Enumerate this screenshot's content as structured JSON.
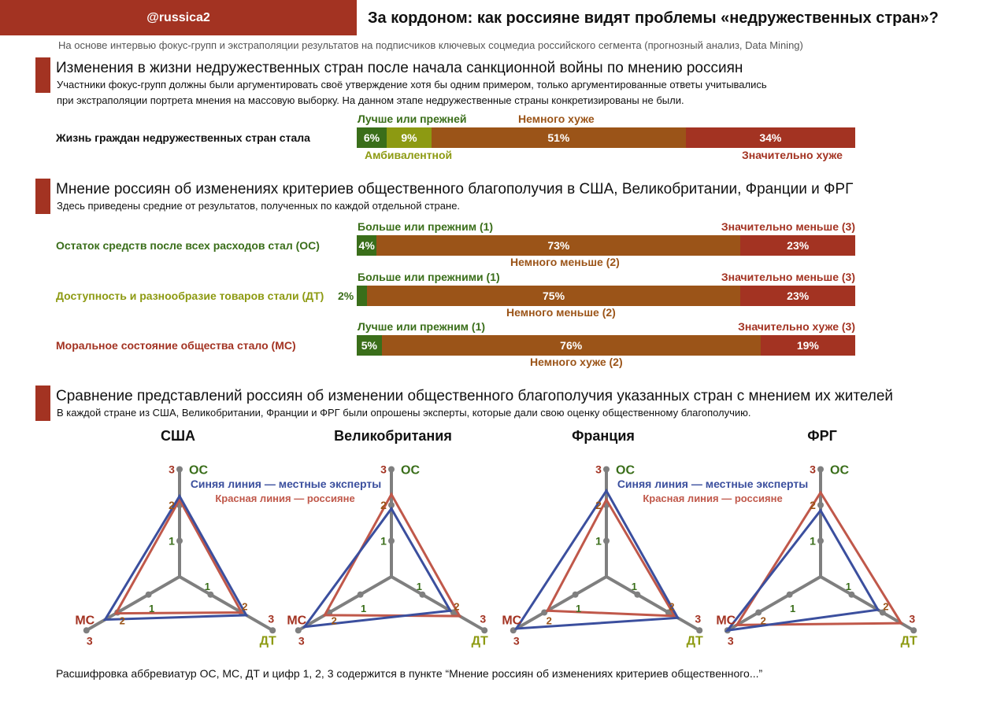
{
  "header": {
    "handle": "@russica2",
    "title": "За кордоном: как россияне видят проблемы «недружественных стран»?",
    "subtitle": "На основе интервью фокус-групп и экстраполяции результатов на подписчиков ключевых соцмедиа российского сегмента (прогнозный анализ, Data Mining)"
  },
  "s1": {
    "title": "Изменения в жизни недружественных стран после начала санкционной войны по мнению россиян",
    "desc1": "Участники фокус-групп должны были аргументировать своё утверждение хотя бы одним примером, только аргументированные ответы учитывались",
    "desc2": "при экстраполяции портрета мнения на массовую выборку. На данном этапе недружественные страны конкретизированы не были.",
    "row": {
      "label": "Жизнь граждан недружественных стран стала",
      "values": [
        6,
        9,
        51,
        34
      ],
      "texts": [
        "6%",
        "9%",
        "51%",
        "34%"
      ],
      "l_better": "Лучше или прежней",
      "l_ambi": "Амбивалентной",
      "l_little": "Немного хуже",
      "l_much": "Значительно хуже"
    }
  },
  "s2": {
    "title": "Мнение россиян об изменениях критериев общественного благополучия в США, Великобритании, Франции и ФРГ",
    "desc": "Здесь приведены средние от результатов, полученных по каждой отдельной стране.",
    "rows": [
      {
        "label": "Остаток средств после всех расходов стал (ОС)",
        "values": [
          4,
          73,
          23
        ],
        "texts": [
          "4%",
          "73%",
          "23%"
        ],
        "l1": "Больше или прежним (1)",
        "l2": "Немного меньше (2)",
        "l3": "Значительно меньше (3)"
      },
      {
        "label": "Доступность и разнообразие товаров стали (ДТ)",
        "values": [
          2,
          75,
          23
        ],
        "texts": [
          "2%",
          "75%",
          "23%"
        ],
        "l1": "Больше или прежними (1)",
        "l2": "Немного меньше (2)",
        "l3": "Значительно меньше (3)"
      },
      {
        "label": "Моральное состояние общества стало (МС)",
        "values": [
          5,
          76,
          19
        ],
        "texts": [
          "5%",
          "76%",
          "19%"
        ],
        "l1": "Лучше или прежним (1)",
        "l2": "Немного хуже (2)",
        "l3": "Значительно хуже (3)"
      }
    ]
  },
  "s3": {
    "title": "Сравнение представлений россиян об изменении общественного благополучия указанных стран с мнением их жителей",
    "desc": "В каждой стране из США, Великобритании, Франции и ФРГ были опрошены эксперты, которые дали свою оценку общественному благополучию.",
    "legend_blue": "Синяя линия — местные эксперты",
    "legend_red": "Красная линия — россияне"
  },
  "colors": {
    "green": "#3a6e1a",
    "olive": "#8d9a12",
    "brown": "#9b5418",
    "red": "#a33322",
    "blue_line": "#3b4f9e",
    "red_line": "#c0584a"
  },
  "chart_data": [
    {
      "type": "radar",
      "title": "США",
      "axes": [
        "ОС",
        "ДТ",
        "МС"
      ],
      "range": [
        0,
        3
      ],
      "series": [
        {
          "name": "Синяя линия — местные эксперты",
          "values": [
            2.25,
            2.15,
            2.4
          ]
        },
        {
          "name": "Красная линия — россияне",
          "values": [
            2.15,
            2.0,
            2.05
          ]
        }
      ]
    },
    {
      "type": "radar",
      "title": "Великобритания",
      "axes": [
        "ОС",
        "ДТ",
        "МС"
      ],
      "range": [
        0,
        3
      ],
      "series": [
        {
          "name": "Синяя линия — местные эксперты",
          "values": [
            1.9,
            1.9,
            2.8
          ]
        },
        {
          "name": "Красная линия — россияне",
          "values": [
            2.3,
            2.2,
            2.15
          ]
        }
      ]
    },
    {
      "type": "radar",
      "title": "Франция",
      "axes": [
        "ОС",
        "ДТ",
        "МС"
      ],
      "range": [
        0,
        3
      ],
      "series": [
        {
          "name": "Синяя линия — местные эксперты",
          "values": [
            2.4,
            2.3,
            2.9
          ]
        },
        {
          "name": "Красная линия — россияне",
          "values": [
            2.15,
            2.2,
            1.9
          ]
        }
      ]
    },
    {
      "type": "radar",
      "title": "ФРГ",
      "axes": [
        "ОС",
        "ДТ",
        "МС"
      ],
      "range": [
        0,
        3
      ],
      "series": [
        {
          "name": "Синяя линия — местные эксперты",
          "values": [
            1.85,
            1.85,
            3.0
          ]
        },
        {
          "name": "Красная линия — россияне",
          "values": [
            2.35,
            2.6,
            2.7
          ]
        }
      ]
    }
  ],
  "footer": "Расшифровка аббревиатур ОС, МС, ДТ и цифр 1, 2, 3 содержится в пункте “Мнение россиян об изменениях критериев общественного...”"
}
